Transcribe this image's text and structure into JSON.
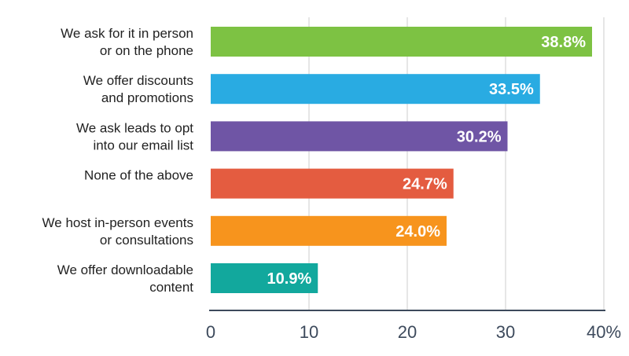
{
  "chart_data": {
    "type": "bar",
    "orientation": "horizontal",
    "categories": [
      [
        "We ask for it in person",
        "or on the phone"
      ],
      [
        "We offer discounts",
        "and promotions"
      ],
      [
        "We ask leads to opt",
        "into our email list"
      ],
      [
        "None of the above"
      ],
      [
        "We host in-person events",
        "or consultations"
      ],
      [
        "We offer downloadable",
        "content"
      ]
    ],
    "values": [
      38.8,
      33.5,
      30.2,
      24.7,
      24.0,
      10.9
    ],
    "value_labels": [
      "38.8%",
      "33.5%",
      "30.2%",
      "24.7%",
      "24.0%",
      "10.9%"
    ],
    "colors": [
      "#7dc243",
      "#29abe2",
      "#6f55a5",
      "#e45c40",
      "#f7941d",
      "#12a89d"
    ],
    "xlim": [
      0,
      40
    ],
    "x_ticks": [
      0,
      10,
      20,
      30,
      40
    ],
    "x_tick_labels": [
      "0",
      "10",
      "20",
      "30",
      "40%"
    ],
    "grid": true,
    "grid_color": "#e6e6e6",
    "axis_color": "#3d4a5c",
    "title": "",
    "xlabel": "",
    "ylabel": ""
  }
}
